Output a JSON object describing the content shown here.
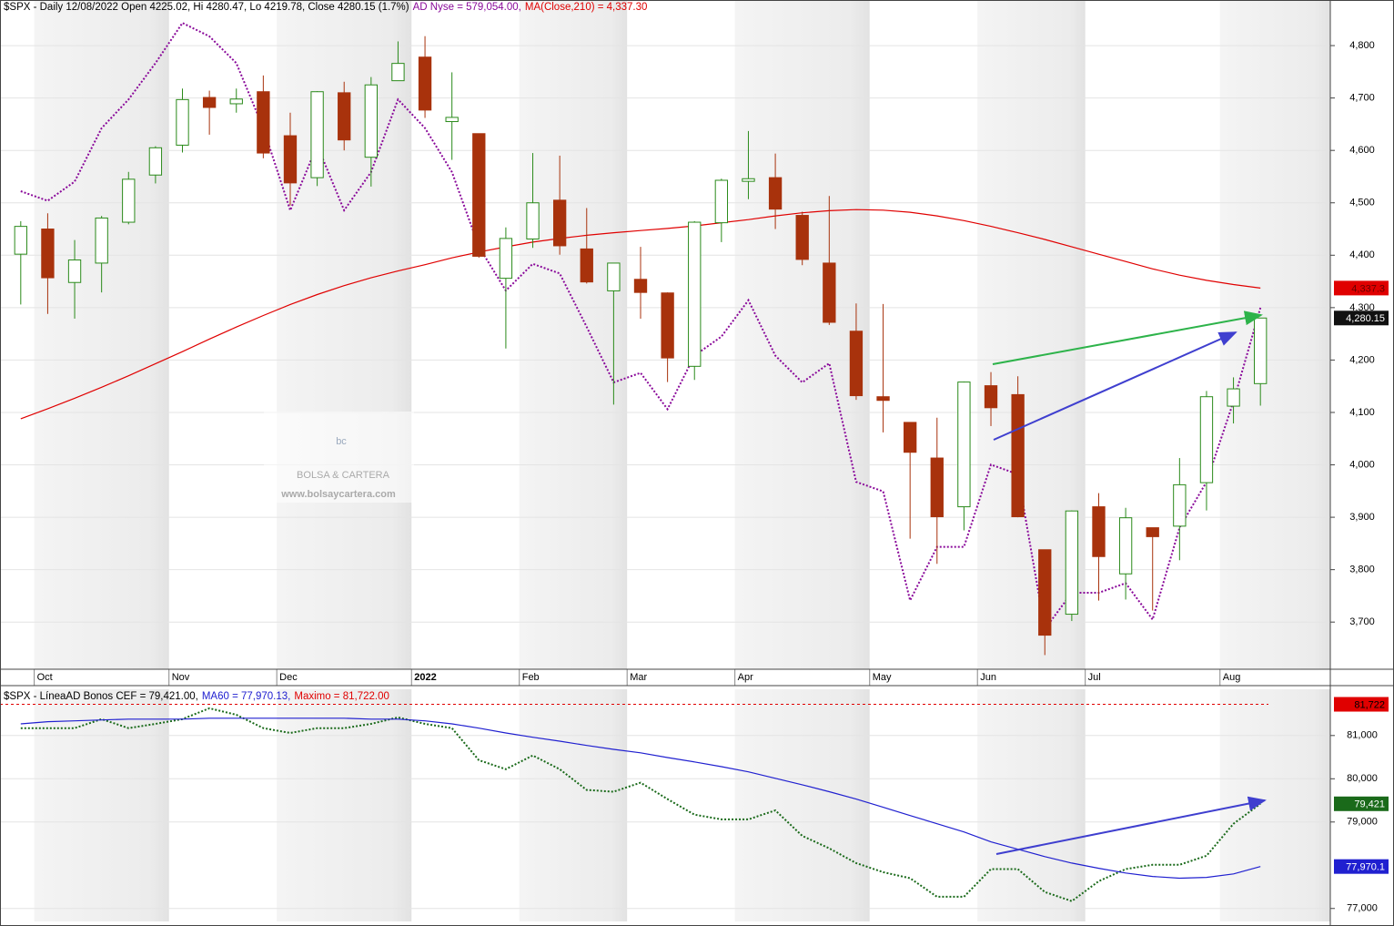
{
  "chart_data": [
    {
      "type": "candlestick",
      "title": "$SPX - Daily 12/08/2022 Open 4225.02, Hi 4280.47, Lo 4219.78, Close 4280.15 (1.7%)",
      "categories": [
        null,
        "Oct",
        null,
        null,
        null,
        null,
        "Nov",
        null,
        null,
        null,
        "Dec",
        null,
        null,
        null,
        null,
        "2022",
        null,
        null,
        null,
        "Feb",
        null,
        null,
        null,
        "Mar",
        null,
        null,
        null,
        "Apr",
        null,
        null,
        null,
        null,
        "May",
        null,
        null,
        null,
        "Jun",
        null,
        null,
        null,
        "Jul",
        null,
        null,
        null,
        null,
        "Aug",
        null
      ],
      "candles": {
        "up_color": "#2a8a1a",
        "down_color": "#a8320c",
        "tag": "4,280.15",
        "open": [
          4402,
          4450,
          4348,
          4385,
          4463,
          4553,
          4610,
          4701,
          4689,
          4712,
          4628,
          4548,
          4710,
          4587,
          4733,
          4778,
          4655,
          4632,
          4356,
          4431,
          4505,
          4412,
          4332,
          4354,
          4328,
          4188,
          4462,
          4541,
          4548,
          4476,
          4385,
          4255,
          4130,
          4081,
          4013,
          3920,
          4151,
          4134,
          3838,
          3715,
          3920,
          3792,
          3880,
          3883,
          3966,
          4112,
          4155
        ],
        "high": [
          4465,
          4480,
          4429,
          4475,
          4559,
          4608,
          4718,
          4714,
          4718,
          4743,
          4672,
          4713,
          4731,
          4740,
          4808,
          4818,
          4749,
          4632,
          4453,
          4595,
          4590,
          4490,
          4385,
          4416,
          4329,
          4465,
          4546,
          4637,
          4594,
          4483,
          4513,
          4308,
          4307,
          4081,
          4090,
          4159,
          4177,
          4169,
          3838,
          3913,
          3946,
          3918,
          3880,
          4013,
          4141,
          4167,
          4280
        ],
        "low": [
          4306,
          4288,
          4279,
          4329,
          4459,
          4537,
          4596,
          4630,
          4672,
          4585,
          4495,
          4532,
          4600,
          4531,
          4733,
          4662,
          4582,
          4395,
          4222,
          4414,
          4401,
          4346,
          4115,
          4279,
          4158,
          4162,
          4425,
          4507,
          4450,
          4381,
          4267,
          4124,
          4062,
          3859,
          3811,
          3875,
          4074,
          3900,
          3637,
          3702,
          3741,
          3743,
          3722,
          3818,
          3913,
          4079,
          4113
        ],
        "close": [
          4455,
          4357,
          4391,
          4471,
          4545,
          4605,
          4697,
          4682,
          4698,
          4595,
          4538,
          4712,
          4620,
          4725,
          4766,
          4677,
          4663,
          4398,
          4432,
          4500,
          4418,
          4349,
          4385,
          4329,
          4204,
          4463,
          4543,
          4546,
          4488,
          4392,
          4272,
          4132,
          4123,
          4024,
          3901,
          4158,
          4109,
          3901,
          3675,
          3912,
          3825,
          3899,
          3863,
          3962,
          4130,
          4145,
          4280.15
        ]
      },
      "series": [
        {
          "name": "AD Nyse = 579,054.00,",
          "color": "#8a0a9a",
          "style": "dotted",
          "axis": "y2",
          "values": [
            640000,
            635000,
            645000,
            673000,
            688000,
            707000,
            728000,
            721000,
            707000,
            673000,
            630000,
            664000,
            630000,
            650000,
            688000,
            673000,
            650000,
            611000,
            588000,
            602000,
            597000,
            569000,
            540000,
            545000,
            526000,
            554000,
            564000,
            583000,
            554000,
            540000,
            550000,
            488000,
            483000,
            426000,
            454000,
            454000,
            497000,
            492000,
            411000,
            430000,
            430000,
            435000,
            416000,
            464000,
            488000,
            530000,
            579054
          ]
        },
        {
          "name": "MA(Close,210) = 4,337.30",
          "color": "#e00000",
          "style": "solid",
          "tag": "4,337.3",
          "values": [
            4088,
            4107,
            4127,
            4148,
            4170,
            4193,
            4216,
            4240,
            4263,
            4285,
            4306,
            4325,
            4342,
            4357,
            4370,
            4382,
            4395,
            4406,
            4416,
            4425,
            4432,
            4438,
            4443,
            4447,
            4451,
            4456,
            4462,
            4468,
            4475,
            4481,
            4485,
            4487,
            4486,
            4482,
            4475,
            4466,
            4455,
            4443,
            4430,
            4416,
            4402,
            4388,
            4374,
            4362,
            4352,
            4344,
            4337.3
          ]
        }
      ],
      "ylim": [
        3610,
        4887
      ],
      "y2lim": [
        390000,
        740000
      ],
      "yticks": [
        {
          "value": 3700,
          "label": "3,700"
        },
        {
          "value": 3800,
          "label": "3,800"
        },
        {
          "value": 3900,
          "label": "3,900"
        },
        {
          "value": 4000,
          "label": "4,000"
        },
        {
          "value": 4100,
          "label": "4,100"
        },
        {
          "value": 4200,
          "label": "4,200"
        },
        {
          "value": 4300,
          "label": "4,300"
        },
        {
          "value": 4400,
          "label": "4,400"
        },
        {
          "value": 4500,
          "label": "4,500"
        },
        {
          "value": 4600,
          "label": "4,600"
        },
        {
          "value": 4700,
          "label": "4,700"
        },
        {
          "value": 4800,
          "label": "4,800"
        }
      ],
      "grid": true,
      "watermark": {
        "logo": "bc",
        "name": "BOLSA & CARTERA",
        "url": "www.bolsaycartera.com"
      }
    },
    {
      "type": "line",
      "title": "$SPX - LíneaAD Bonos CEF = 79,421.00,",
      "series": [
        {
          "color": "#1a6a1a",
          "style": "dotted",
          "tag": "79,421",
          "values": [
            81170,
            81170,
            81170,
            81380,
            81170,
            81270,
            81380,
            81630,
            81480,
            81170,
            81060,
            81170,
            81170,
            81270,
            81420,
            81270,
            81170,
            80430,
            80220,
            80540,
            80220,
            79740,
            79700,
            79910,
            79530,
            79170,
            79060,
            79060,
            79270,
            78680,
            78390,
            78050,
            77840,
            77700,
            77270,
            77270,
            77910,
            77910,
            77380,
            77170,
            77630,
            77910,
            78010,
            78010,
            78220,
            78960,
            79421
          ]
        },
        {
          "name": "MA60 = 77,970.13,",
          "color": "#2020d0",
          "style": "solid",
          "tag": "77,970.1",
          "values": [
            81270,
            81320,
            81340,
            81360,
            81380,
            81380,
            81380,
            81400,
            81400,
            81400,
            81400,
            81400,
            81400,
            81380,
            81380,
            81340,
            81270,
            81170,
            81060,
            80960,
            80870,
            80770,
            80680,
            80600,
            80490,
            80390,
            80280,
            80160,
            80010,
            79860,
            79700,
            79530,
            79340,
            79150,
            78960,
            78770,
            78540,
            78370,
            78200,
            78050,
            77930,
            77820,
            77740,
            77700,
            77720,
            77800,
            77970.13
          ]
        }
      ],
      "reference_lines": [
        {
          "name": "Maximo = 81,722.00",
          "value": 81722,
          "color": "#e00000",
          "tag": "81,722"
        }
      ],
      "ylim": [
        76700,
        82070
      ],
      "yticks": [
        {
          "value": 77000,
          "label": "77,000"
        },
        {
          "value": 79000,
          "label": "79,000"
        },
        {
          "value": 80000,
          "label": "80,000"
        },
        {
          "value": 81000,
          "label": "81,000"
        }
      ],
      "grid": true
    }
  ]
}
